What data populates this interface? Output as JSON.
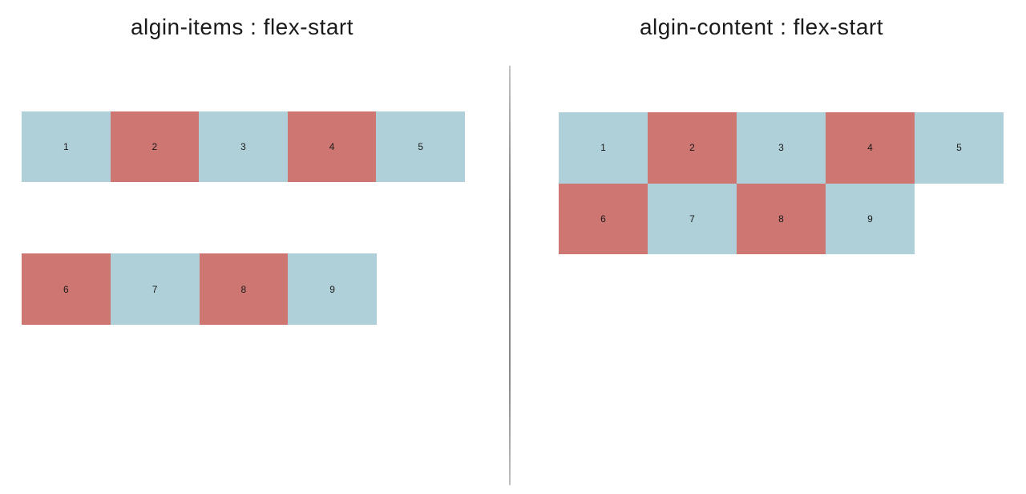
{
  "colors": {
    "blue": "#AFCFD9",
    "salmon": "#CE7672",
    "divider": "#8a8a8a",
    "title_text": "#1b1b1b"
  },
  "panels": [
    {
      "id": "align-items-demo",
      "title": "algin-items : flex-start",
      "rows": [
        {
          "boxes": [
            {
              "label": "1",
              "color": "blue"
            },
            {
              "label": "2",
              "color": "salmon"
            },
            {
              "label": "3",
              "color": "blue"
            },
            {
              "label": "4",
              "color": "salmon"
            },
            {
              "label": "5",
              "color": "blue"
            }
          ]
        },
        {
          "boxes": [
            {
              "label": "6",
              "color": "salmon"
            },
            {
              "label": "7",
              "color": "blue"
            },
            {
              "label": "8",
              "color": "salmon"
            },
            {
              "label": "9",
              "color": "blue"
            }
          ]
        }
      ]
    },
    {
      "id": "align-content-demo",
      "title": "algin-content : flex-start",
      "rows": [
        {
          "boxes": [
            {
              "label": "1",
              "color": "blue"
            },
            {
              "label": "2",
              "color": "salmon"
            },
            {
              "label": "3",
              "color": "blue"
            },
            {
              "label": "4",
              "color": "salmon"
            },
            {
              "label": "5",
              "color": "blue"
            }
          ]
        },
        {
          "boxes": [
            {
              "label": "6",
              "color": "salmon"
            },
            {
              "label": "7",
              "color": "blue"
            },
            {
              "label": "8",
              "color": "salmon"
            },
            {
              "label": "9",
              "color": "blue"
            }
          ]
        }
      ]
    }
  ]
}
